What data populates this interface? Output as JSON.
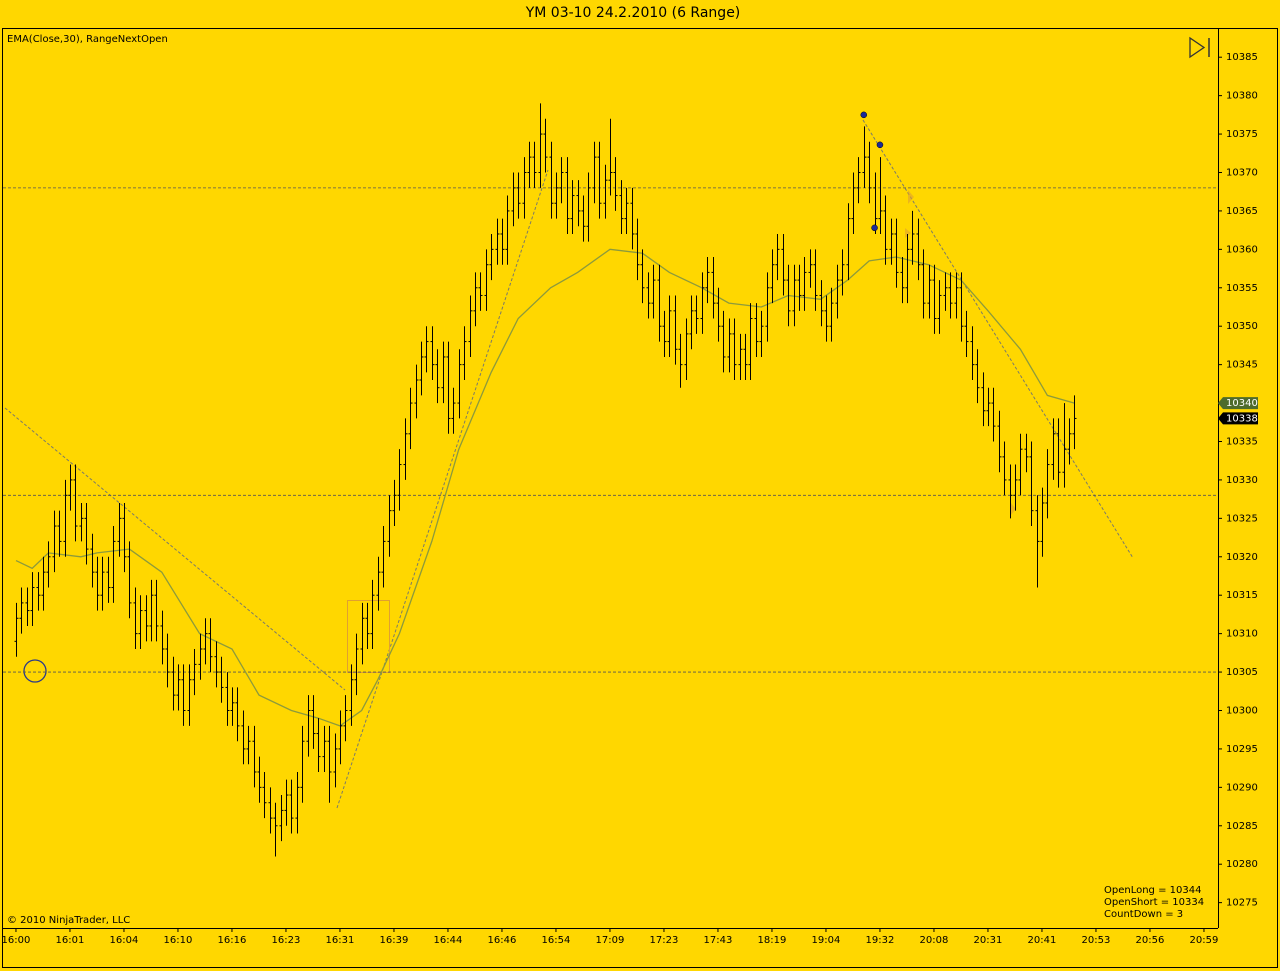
{
  "chart_data": {
    "type": "ohlc",
    "title": "YM 03-10  24.2.2010 (6 Range)",
    "indicator_label": "EMA(Close,30), RangeNextOpen",
    "copyright": "© 2010 NinjaTrader, LLC",
    "info": [
      "OpenLong = 10344",
      "OpenShort = 10334",
      "CountDown = 3"
    ],
    "background": "#ffd700",
    "bar_color": "#000000",
    "ylim": [
      10271.7,
      10388.8
    ],
    "yticks": [
      10275,
      10280,
      10285,
      10290,
      10295,
      10300,
      10305,
      10310,
      10315,
      10320,
      10325,
      10330,
      10335,
      10340,
      10345,
      10350,
      10355,
      10360,
      10365,
      10370,
      10375,
      10380,
      10385
    ],
    "xlim": [
      -2.4,
      222.6
    ],
    "xticks": [
      {
        "value": 0,
        "label": "16:00"
      },
      {
        "value": 10,
        "label": "16:01"
      },
      {
        "value": 20,
        "label": "16:04"
      },
      {
        "value": 30,
        "label": "16:10"
      },
      {
        "value": 40,
        "label": "16:16"
      },
      {
        "value": 50,
        "label": "16:23"
      },
      {
        "value": 60,
        "label": "16:31"
      },
      {
        "value": 70,
        "label": "16:39"
      },
      {
        "value": 80,
        "label": "16:44"
      },
      {
        "value": 90,
        "label": "16:46"
      },
      {
        "value": 100,
        "label": "16:54"
      },
      {
        "value": 110,
        "label": "17:09"
      },
      {
        "value": 120,
        "label": "17:23"
      },
      {
        "value": 130,
        "label": "17:43"
      },
      {
        "value": 140,
        "label": "18:19"
      },
      {
        "value": 150,
        "label": "19:04"
      },
      {
        "value": 160,
        "label": "19:32"
      },
      {
        "value": 170,
        "label": "20:08"
      },
      {
        "value": 180,
        "label": "20:31"
      },
      {
        "value": 190,
        "label": "20:41"
      },
      {
        "value": 200,
        "label": "20:53"
      },
      {
        "value": 210,
        "label": "20:56"
      },
      {
        "value": 220,
        "label": "20:59"
      }
    ],
    "hlines": [
      10368,
      10328,
      10305
    ],
    "price_markers": [
      {
        "value": 10340,
        "color": "#4e6b2c"
      },
      {
        "value": 10338,
        "color": "#000000"
      }
    ],
    "dots": [
      {
        "x": 157,
        "y": 10377.5
      },
      {
        "x": 160,
        "y": 10373.6
      },
      {
        "x": 159,
        "y": 10362.8
      }
    ],
    "ema": {
      "name": "EMA(Close,30)",
      "color": "#8c9a3c",
      "x": [
        0,
        3,
        6,
        12,
        15,
        21,
        27,
        34,
        40,
        45,
        51,
        56,
        60,
        64,
        67,
        71,
        77,
        82,
        88,
        93,
        99,
        104,
        110,
        116,
        121,
        127,
        132,
        138,
        143,
        149,
        154,
        158,
        163,
        169,
        175,
        180,
        186,
        191,
        196
      ],
      "values": [
        10319.5,
        10318.5,
        10320.5,
        10320,
        10320.5,
        10321,
        10318,
        10310,
        10308,
        10302,
        10300,
        10299,
        10298,
        10300,
        10304,
        10310,
        10322,
        10334,
        10344,
        10351,
        10355,
        10357,
        10360,
        10359.5,
        10357,
        10355,
        10353,
        10352.5,
        10354,
        10353.5,
        10356,
        10358.5,
        10359,
        10358,
        10356,
        10352,
        10347,
        10341,
        10340
      ]
    },
    "bars": [
      [
        10309,
        10314,
        10307,
        10312
      ],
      [
        10312,
        10316,
        10310,
        10314
      ],
      [
        10314,
        10316,
        10311,
        10313
      ],
      [
        10313,
        10318,
        10311,
        10316
      ],
      [
        10316,
        10318,
        10313,
        10315
      ],
      [
        10315,
        10320,
        10313,
        10318
      ],
      [
        10318,
        10322,
        10316,
        10320
      ],
      [
        10320,
        10326,
        10318,
        10324
      ],
      [
        10324,
        10326,
        10320,
        10322
      ],
      [
        10322,
        10330,
        10320,
        10328
      ],
      [
        10328,
        10332,
        10326,
        10330
      ],
      [
        10330,
        10332,
        10322,
        10324
      ],
      [
        10324,
        10327,
        10322,
        10325
      ],
      [
        10325,
        10327,
        10319,
        10321
      ],
      [
        10321,
        10323,
        10316,
        10318
      ],
      [
        10318,
        10320,
        10313,
        10315
      ],
      [
        10315,
        10320,
        10313,
        10318
      ],
      [
        10318,
        10320,
        10314,
        10316
      ],
      [
        10316,
        10324,
        10314,
        10322
      ],
      [
        10322,
        10327,
        10320,
        10325
      ],
      [
        10325,
        10327,
        10318,
        10320
      ],
      [
        10320,
        10322,
        10312,
        10314
      ],
      [
        10314,
        10316,
        10308,
        10310
      ],
      [
        10310,
        10315,
        10308,
        10313
      ],
      [
        10313,
        10315,
        10309,
        10311
      ],
      [
        10311,
        10317,
        10309,
        10315
      ],
      [
        10315,
        10317,
        10309,
        10311
      ],
      [
        10311,
        10313,
        10306,
        10308
      ],
      [
        10308,
        10310,
        10303,
        10305
      ],
      [
        10305,
        10307,
        10300,
        10302
      ],
      [
        10302,
        10306,
        10300,
        10304
      ],
      [
        10304,
        10306,
        10298,
        10300
      ],
      [
        10300,
        10306,
        10298,
        10304
      ],
      [
        10304,
        10308,
        10302,
        10306
      ],
      [
        10306,
        10310,
        10304,
        10308
      ],
      [
        10308,
        10312,
        10306,
        10310
      ],
      [
        10310,
        10312,
        10305,
        10307
      ],
      [
        10307,
        10309,
        10303,
        10305
      ],
      [
        10305,
        10307,
        10301,
        10303
      ],
      [
        10303,
        10305,
        10298,
        10300
      ],
      [
        10300,
        10303,
        10298,
        10301
      ],
      [
        10301,
        10303,
        10296,
        10298
      ],
      [
        10298,
        10300,
        10293,
        10295
      ],
      [
        10295,
        10298,
        10293,
        10296
      ],
      [
        10296,
        10298,
        10290,
        10292
      ],
      [
        10292,
        10294,
        10288,
        10290
      ],
      [
        10290,
        10292,
        10286,
        10288
      ],
      [
        10288,
        10290,
        10284,
        10286
      ],
      [
        10286,
        10288,
        10281,
        10285
      ],
      [
        10285,
        10289,
        10283,
        10287
      ],
      [
        10287,
        10291,
        10285,
        10289
      ],
      [
        10289,
        10291,
        10284,
        10286
      ],
      [
        10286,
        10292,
        10284,
        10290
      ],
      [
        10290,
        10298,
        10288,
        10296
      ],
      [
        10296,
        10302,
        10294,
        10300
      ],
      [
        10300,
        10302,
        10295,
        10297
      ],
      [
        10297,
        10299,
        10292,
        10294
      ],
      [
        10294,
        10298,
        10292,
        10296
      ],
      [
        10296,
        10298,
        10288,
        10292
      ],
      [
        10292,
        10297,
        10290,
        10295
      ],
      [
        10295,
        10300,
        10293,
        10298
      ],
      [
        10298,
        10302,
        10296,
        10300
      ],
      [
        10300,
        10306,
        10298,
        10304
      ],
      [
        10304,
        10310,
        10302,
        10308
      ],
      [
        10308,
        10314,
        10306,
        10312
      ],
      [
        10312,
        10314,
        10308,
        10310
      ],
      [
        10310,
        10317,
        10308,
        10315
      ],
      [
        10315,
        10320,
        10313,
        10318
      ],
      [
        10318,
        10324,
        10316,
        10322
      ],
      [
        10322,
        10328,
        10320,
        10326
      ],
      [
        10326,
        10330,
        10324,
        10328
      ],
      [
        10328,
        10334,
        10326,
        10332
      ],
      [
        10332,
        10338,
        10330,
        10336
      ],
      [
        10336,
        10342,
        10334,
        10340
      ],
      [
        10340,
        10345,
        10338,
        10343
      ],
      [
        10343,
        10348,
        10341,
        10346
      ],
      [
        10346,
        10350,
        10344,
        10348
      ],
      [
        10348,
        10350,
        10343,
        10345
      ],
      [
        10345,
        10347,
        10340,
        10342
      ],
      [
        10342,
        10348,
        10340,
        10346
      ],
      [
        10346,
        10348,
        10336,
        10338
      ],
      [
        10338,
        10342,
        10336,
        10340
      ],
      [
        10340,
        10347,
        10338,
        10345
      ],
      [
        10345,
        10350,
        10343,
        10348
      ],
      [
        10348,
        10354,
        10346,
        10352
      ],
      [
        10352,
        10357,
        10350,
        10355
      ],
      [
        10355,
        10357,
        10352,
        10354
      ],
      [
        10354,
        10360,
        10352,
        10358
      ],
      [
        10358,
        10362,
        10356,
        10360
      ],
      [
        10360,
        10364,
        10358,
        10362
      ],
      [
        10362,
        10364,
        10358,
        10360
      ],
      [
        10360,
        10367,
        10358,
        10365
      ],
      [
        10365,
        10370,
        10363,
        10368
      ],
      [
        10368,
        10370,
        10364,
        10366
      ],
      [
        10366,
        10372,
        10364,
        10370
      ],
      [
        10370,
        10374,
        10368,
        10372
      ],
      [
        10372,
        10374,
        10368,
        10370
      ],
      [
        10370,
        10379,
        10368,
        10375
      ],
      [
        10375,
        10377,
        10370,
        10372
      ],
      [
        10372,
        10374,
        10364,
        10366
      ],
      [
        10366,
        10370,
        10364,
        10368
      ],
      [
        10368,
        10372,
        10366,
        10370
      ],
      [
        10370,
        10372,
        10362,
        10364
      ],
      [
        10364,
        10369,
        10362,
        10367
      ],
      [
        10367,
        10369,
        10363,
        10365
      ],
      [
        10365,
        10367,
        10361,
        10363
      ],
      [
        10363,
        10370,
        10361,
        10368
      ],
      [
        10368,
        10374,
        10366,
        10372
      ],
      [
        10372,
        10374,
        10364,
        10366
      ],
      [
        10366,
        10371,
        10364,
        10369
      ],
      [
        10369,
        10377,
        10367,
        10370
      ],
      [
        10370,
        10372,
        10365,
        10367
      ],
      [
        10367,
        10369,
        10362,
        10364
      ],
      [
        10364,
        10368,
        10362,
        10366
      ],
      [
        10366,
        10368,
        10360,
        10362
      ],
      [
        10362,
        10364,
        10356,
        10358
      ],
      [
        10358,
        10360,
        10353,
        10355
      ],
      [
        10355,
        10357,
        10351,
        10353
      ],
      [
        10353,
        10358,
        10351,
        10356
      ],
      [
        10356,
        10358,
        10348,
        10350
      ],
      [
        10350,
        10352,
        10346,
        10348
      ],
      [
        10348,
        10354,
        10346,
        10352
      ],
      [
        10352,
        10354,
        10345,
        10347
      ],
      [
        10347,
        10349,
        10342,
        10345
      ],
      [
        10345,
        10351,
        10343,
        10349
      ],
      [
        10349,
        10354,
        10347,
        10352
      ],
      [
        10352,
        10354,
        10349,
        10351
      ],
      [
        10351,
        10357,
        10349,
        10355
      ],
      [
        10355,
        10359,
        10353,
        10357
      ],
      [
        10357,
        10359,
        10351,
        10353
      ],
      [
        10353,
        10355,
        10348,
        10350
      ],
      [
        10350,
        10352,
        10344,
        10346
      ],
      [
        10346,
        10351,
        10344,
        10349
      ],
      [
        10349,
        10351,
        10343,
        10345
      ],
      [
        10345,
        10349,
        10343,
        10347
      ],
      [
        10347,
        10349,
        10343,
        10345
      ],
      [
        10345,
        10353,
        10343,
        10351
      ],
      [
        10351,
        10353,
        10346,
        10348
      ],
      [
        10348,
        10352,
        10346,
        10350
      ],
      [
        10350,
        10357,
        10348,
        10355
      ],
      [
        10355,
        10360,
        10353,
        10358
      ],
      [
        10358,
        10362,
        10356,
        10360
      ],
      [
        10360,
        10362,
        10354,
        10356
      ],
      [
        10356,
        10358,
        10350,
        10352
      ],
      [
        10352,
        10358,
        10350,
        10356
      ],
      [
        10356,
        10358,
        10352,
        10354
      ],
      [
        10354,
        10359,
        10352,
        10357
      ],
      [
        10357,
        10360,
        10355,
        10358
      ],
      [
        10358,
        10360,
        10352,
        10354
      ],
      [
        10354,
        10356,
        10350,
        10352
      ],
      [
        10352,
        10354,
        10348,
        10350
      ],
      [
        10350,
        10355,
        10348,
        10353
      ],
      [
        10353,
        10358,
        10351,
        10356
      ],
      [
        10356,
        10360,
        10354,
        10358
      ],
      [
        10358,
        10366,
        10356,
        10364
      ],
      [
        10364,
        10370,
        10362,
        10368
      ],
      [
        10368,
        10372,
        10366,
        10370
      ],
      [
        10370,
        10376,
        10368,
        10372
      ],
      [
        10372,
        10374,
        10366,
        10368
      ],
      [
        10368,
        10370,
        10362,
        10364
      ],
      [
        10364,
        10372,
        10362,
        10365
      ],
      [
        10365,
        10367,
        10358,
        10360
      ],
      [
        10360,
        10364,
        10358,
        10362
      ],
      [
        10362,
        10364,
        10355,
        10357
      ],
      [
        10357,
        10359,
        10353,
        10355
      ],
      [
        10355,
        10362,
        10353,
        10360
      ],
      [
        10360,
        10365,
        10358,
        10362
      ],
      [
        10362,
        10364,
        10356,
        10358
      ],
      [
        10358,
        10360,
        10351,
        10353
      ],
      [
        10353,
        10358,
        10351,
        10356
      ],
      [
        10356,
        10358,
        10349,
        10351
      ],
      [
        10351,
        10356,
        10349,
        10354
      ],
      [
        10354,
        10357,
        10352,
        10355
      ],
      [
        10355,
        10357,
        10351,
        10353
      ],
      [
        10353,
        10357,
        10351,
        10355
      ],
      [
        10355,
        10357,
        10348,
        10350
      ],
      [
        10350,
        10352,
        10346,
        10348
      ],
      [
        10348,
        10350,
        10343,
        10345
      ],
      [
        10345,
        10347,
        10340,
        10342
      ],
      [
        10342,
        10344,
        10337,
        10339
      ],
      [
        10339,
        10342,
        10337,
        10340
      ],
      [
        10340,
        10342,
        10335,
        10337
      ],
      [
        10337,
        10339,
        10331,
        10333
      ],
      [
        10333,
        10335,
        10328,
        10330
      ],
      [
        10330,
        10332,
        10325,
        10328
      ],
      [
        10328,
        10332,
        10326,
        10330
      ],
      [
        10330,
        10336,
        10328,
        10334
      ],
      [
        10334,
        10336,
        10331,
        10333
      ],
      [
        10333,
        10335,
        10324,
        10326
      ],
      [
        10326,
        10328,
        10316,
        10322
      ],
      [
        10322,
        10329,
        10320,
        10327
      ],
      [
        10327,
        10334,
        10325,
        10332
      ],
      [
        10332,
        10338,
        10330,
        10336
      ],
      [
        10336,
        10338,
        10329,
        10331
      ],
      [
        10331,
        10340,
        10329,
        10334
      ],
      [
        10334,
        10338,
        10332,
        10336
      ],
      [
        10336,
        10341,
        10334,
        10338
      ]
    ]
  }
}
